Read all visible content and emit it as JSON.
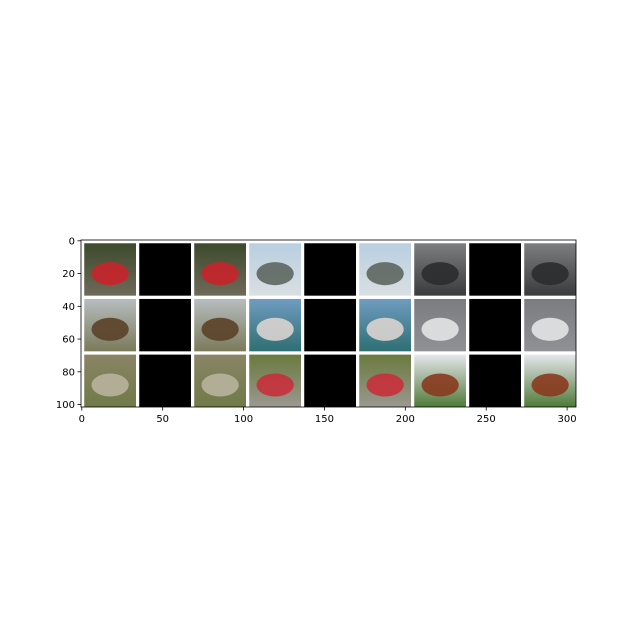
{
  "chart_data": {
    "type": "image",
    "xlim": [
      -0.5,
      305.5
    ],
    "ylim": [
      101.5,
      -0.5
    ],
    "xticks": [
      0,
      50,
      100,
      150,
      200,
      250,
      300
    ],
    "yticks": [
      0,
      20,
      40,
      60,
      80,
      100
    ]
  }
}
